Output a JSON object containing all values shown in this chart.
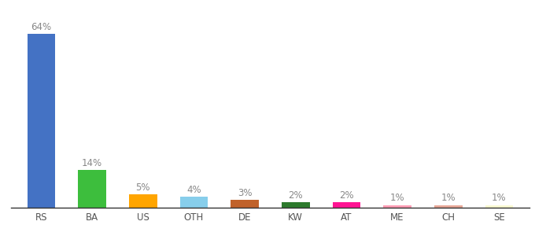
{
  "categories": [
    "RS",
    "BA",
    "US",
    "OTH",
    "DE",
    "KW",
    "AT",
    "ME",
    "CH",
    "SE"
  ],
  "values": [
    64,
    14,
    5,
    4,
    3,
    2,
    2,
    1,
    1,
    1
  ],
  "bar_colors": [
    "#4472C4",
    "#3DBE3D",
    "#FFA500",
    "#87CEEB",
    "#C0622B",
    "#2D7A2D",
    "#FF1493",
    "#FF9EB5",
    "#E8A898",
    "#FAFAD2"
  ],
  "label_fontsize": 8.5,
  "tick_fontsize": 8.5,
  "background_color": "#ffffff",
  "ylim": [
    0,
    72
  ],
  "bar_width": 0.55
}
